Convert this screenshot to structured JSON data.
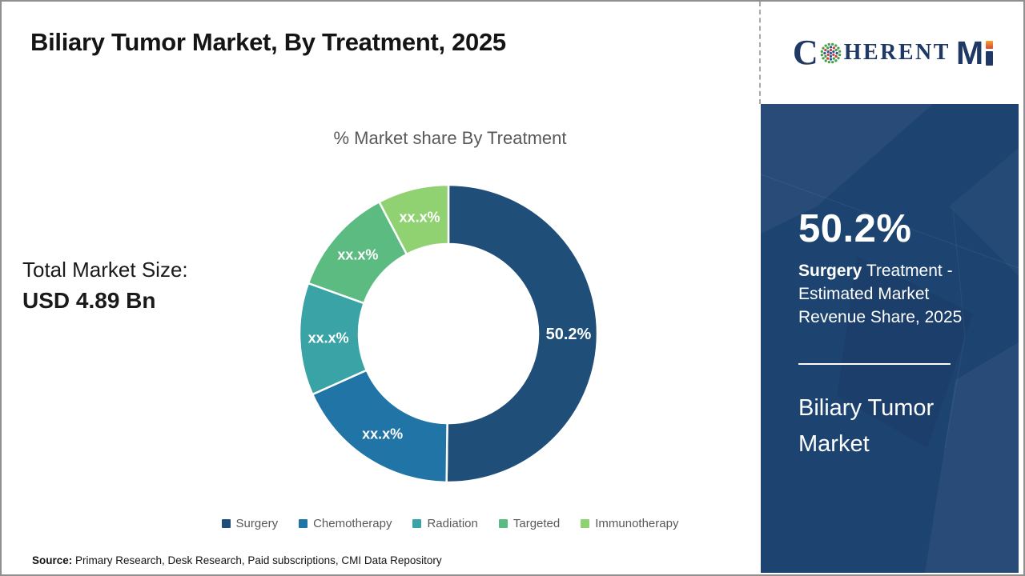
{
  "title": "Biliary Tumor Market, By Treatment, 2025",
  "brand": {
    "name": "CoherentMI",
    "text_c": "C",
    "text_herent": "HERENT",
    "text_m": "M",
    "colors": {
      "navy": "#1F3864",
      "orange": "#F6A329",
      "red": "#D8453C"
    }
  },
  "market_size": {
    "label": "Total Market Size:",
    "value": "USD 4.89 Bn"
  },
  "chart_data": {
    "type": "pie",
    "subtype": "donut",
    "title": "% Market share By Treatment",
    "unit": "%",
    "start_angle": 0,
    "direction": "clockwise",
    "legend_position": "bottom",
    "series": [
      {
        "name": "Surgery",
        "value": 50.2,
        "label": "50.2%",
        "color": "#1F4E79"
      },
      {
        "name": "Chemotherapy",
        "value": 18.1,
        "label": "xx.x%",
        "color": "#2074A6"
      },
      {
        "name": "Radiation",
        "value": 12.2,
        "label": "xx.x%",
        "color": "#39A3A5"
      },
      {
        "name": "Targeted",
        "value": 11.8,
        "label": "xx.x%",
        "color": "#5CBB81"
      },
      {
        "name": "Immunotherapy",
        "value": 7.7,
        "label": "xx.x%",
        "color": "#90D271"
      }
    ]
  },
  "sidebar": {
    "stat_value": "50.2%",
    "stat_desc_bold": "Surgery",
    "stat_desc_rest": " Treatment - Estimated Market Revenue Share, 2025",
    "market_name": "Biliary Tumor Market",
    "bg_color": "#1D4370"
  },
  "source": {
    "label": "Source:",
    "text": " Primary Research, Desk Research, Paid subscriptions, CMI Data Repository"
  }
}
